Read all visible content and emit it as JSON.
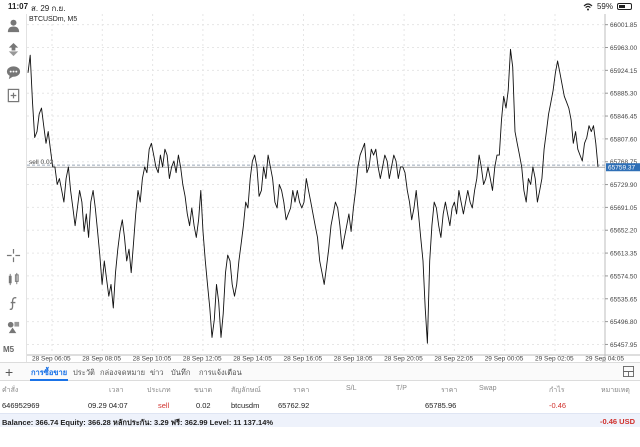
{
  "status_bar": {
    "time": "11:07",
    "date": "ส. 29 ก.ย.",
    "battery": "59%",
    "battery_level": 0.59
  },
  "chart": {
    "symbol": "BTCUSDm, M5",
    "sell_line_label": "sell 0.02",
    "current_price": "65759.37"
  },
  "left_toolbar": {
    "timeframe": "M5",
    "icons": [
      "account-icon",
      "trade-icon",
      "chat-icon",
      "new-order-icon",
      "crosshair-icon",
      "indicators-icon",
      "function-icon",
      "objects-icon"
    ]
  },
  "chart_data": {
    "type": "line",
    "symbol": "BTCUSDm",
    "timeframe": "M5",
    "ylim": [
      65440,
      66020
    ],
    "yticks": [
      "66001.85",
      "65963.00",
      "65924.15",
      "65885.30",
      "65846.45",
      "65807.60",
      "65768.75",
      "65729.90",
      "65691.05",
      "65652.20",
      "65613.35",
      "65574.50",
      "65535.65",
      "65496.80",
      "65457.95"
    ],
    "xticks": [
      "28 Sep 06:05",
      "28 Sep 08:05",
      "28 Sep 10:05",
      "28 Sep 12:05",
      "28 Sep 14:05",
      "28 Sep 16:05",
      "28 Sep 18:05",
      "28 Sep 20:05",
      "28 Sep 22:05",
      "29 Sep 00:05",
      "29 Sep 02:05",
      "29 Sep 04:05"
    ],
    "sell_level": 65762.92,
    "current_price": 65759.37,
    "values": [
      65920,
      65950,
      65870,
      65810,
      65820,
      65850,
      65860,
      65830,
      65800,
      65820,
      65790,
      65760,
      65760,
      65730,
      65740,
      65720,
      65700,
      65740,
      65760,
      65720,
      65690,
      65660,
      65690,
      65720,
      65700,
      65650,
      65680,
      65640,
      65700,
      65720,
      65690,
      65650,
      65610,
      65560,
      65600,
      65570,
      65540,
      65560,
      65520,
      65580,
      65620,
      65650,
      65670,
      65640,
      65600,
      65620,
      65580,
      65630,
      65680,
      65720,
      65700,
      65740,
      65760,
      65750,
      65790,
      65800,
      65780,
      65760,
      65750,
      65780,
      65760,
      65790,
      65780,
      65740,
      65760,
      65770,
      65750,
      65780,
      65760,
      65730,
      65710,
      65680,
      65660,
      65690,
      65660,
      65640,
      65670,
      65720,
      65650,
      65600,
      65560,
      65520,
      65470,
      65500,
      65560,
      65530,
      65470,
      65510,
      65580,
      65610,
      65600,
      65560,
      65540,
      65560,
      65600,
      65630,
      65660,
      65700,
      65690,
      65740,
      65770,
      65780,
      65760,
      65710,
      65720,
      65760,
      65740,
      65780,
      65760,
      65740,
      65700,
      65690,
      65730,
      65720,
      65700,
      65670,
      65680,
      65690,
      65720,
      65700,
      65720,
      65700,
      65690,
      65700,
      65740,
      65720,
      65700,
      65680,
      65660,
      65640,
      65600,
      65580,
      65560,
      65590,
      65620,
      65660,
      65680,
      65700,
      65690,
      65660,
      65620,
      65640,
      65660,
      65680,
      65650,
      65690,
      65720,
      65760,
      65780,
      65790,
      65800,
      65750,
      65760,
      65790,
      65780,
      65790,
      65760,
      65740,
      65760,
      65780,
      65770,
      65740,
      65760,
      65780,
      65770,
      65740,
      65760,
      65760,
      65750,
      65720,
      65700,
      65670,
      65690,
      65720,
      65680,
      65640,
      65600,
      65520,
      65460,
      65600,
      65660,
      65700,
      65690,
      65660,
      65640,
      65680,
      65700,
      65680,
      65660,
      65690,
      65700,
      65680,
      65720,
      65700,
      65680,
      65700,
      65720,
      65700,
      65690,
      65720,
      65740,
      65780,
      65760,
      65730,
      65740,
      65760,
      65740,
      65720,
      65760,
      65780,
      65780,
      65840,
      65880,
      65860,
      65890,
      65960,
      65930,
      65820,
      65800,
      65780,
      65760,
      65720,
      65700,
      65740,
      65730,
      65760,
      65740,
      65700,
      65720,
      65740,
      65790,
      65820,
      65850,
      65870,
      65890,
      65920,
      65940,
      65920,
      65900,
      65880,
      65870,
      65860,
      65840,
      65800,
      65820,
      65790,
      65780,
      65770,
      65800,
      65810,
      65830,
      65820,
      65830,
      65800,
      65760
    ]
  },
  "bottom_tabs": {
    "add_label": "+",
    "items": [
      "การซื้อขาย",
      "ประวัติ",
      "กล่องจดหมาย",
      "ข่าว",
      "บันทึก",
      "การแจ้งเตือน"
    ],
    "active_index": 0
  },
  "trade_table": {
    "headers": {
      "order": "คำสั่ง",
      "time": "เวลา",
      "type": "ประเภท",
      "volume": "ขนาด",
      "symbol": "สัญลักษณ์",
      "price": "ราคา",
      "sl": "S/L",
      "tp": "T/P",
      "current_price": "ราคา",
      "swap": "Swap",
      "profit": "กำไร",
      "comment": "หมายเหตุ"
    },
    "rows": [
      {
        "order": "646952969",
        "time": "09.29 04:07",
        "type": "sell",
        "volume": "0.02",
        "symbol": "btcusdm",
        "price": "65762.92",
        "sl": "",
        "tp": "",
        "current_price": "65785.96",
        "swap": "",
        "profit": "-0.46",
        "comment": ""
      }
    ]
  },
  "balance_bar": {
    "text": "Balance: 366.74 Equity: 366.28 หลักประกัน: 3.29 ฟรี: 362.99 Level: 11 137.14%",
    "profit": "-0.46  USD"
  }
}
